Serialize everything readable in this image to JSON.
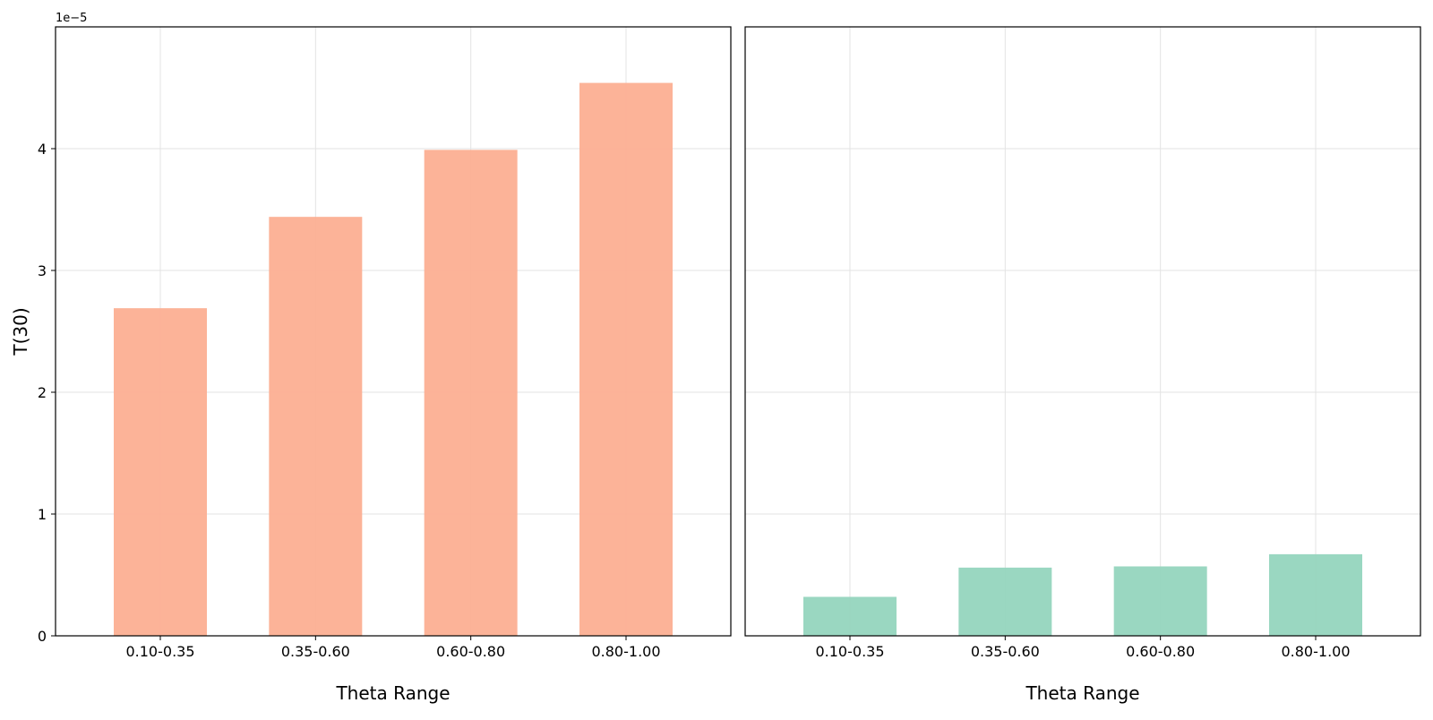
{
  "chart_data": [
    {
      "type": "bar",
      "categories": [
        "0.10-0.35",
        "0.35-0.60",
        "0.60-0.80",
        "0.80-1.00"
      ],
      "values": [
        2.69e-05,
        3.44e-05,
        3.99e-05,
        4.54e-05
      ],
      "xlabel": "Theta Range",
      "ylabel": "T(30)",
      "ylim": [
        0,
        5e-05
      ],
      "yticks": [
        "0",
        "1",
        "2",
        "3",
        "4"
      ],
      "offset_text": "1e−5",
      "color": "#fcaf92",
      "grid": true
    },
    {
      "type": "bar",
      "categories": [
        "0.10-0.35",
        "0.35-0.60",
        "0.60-0.80",
        "0.80-1.00"
      ],
      "values": [
        3.2e-06,
        5.6e-06,
        5.7e-06,
        6.7e-06
      ],
      "xlabel": "Theta Range",
      "ylabel": "",
      "ylim": [
        0,
        5e-05
      ],
      "color": "#95d5be",
      "grid": true
    }
  ]
}
